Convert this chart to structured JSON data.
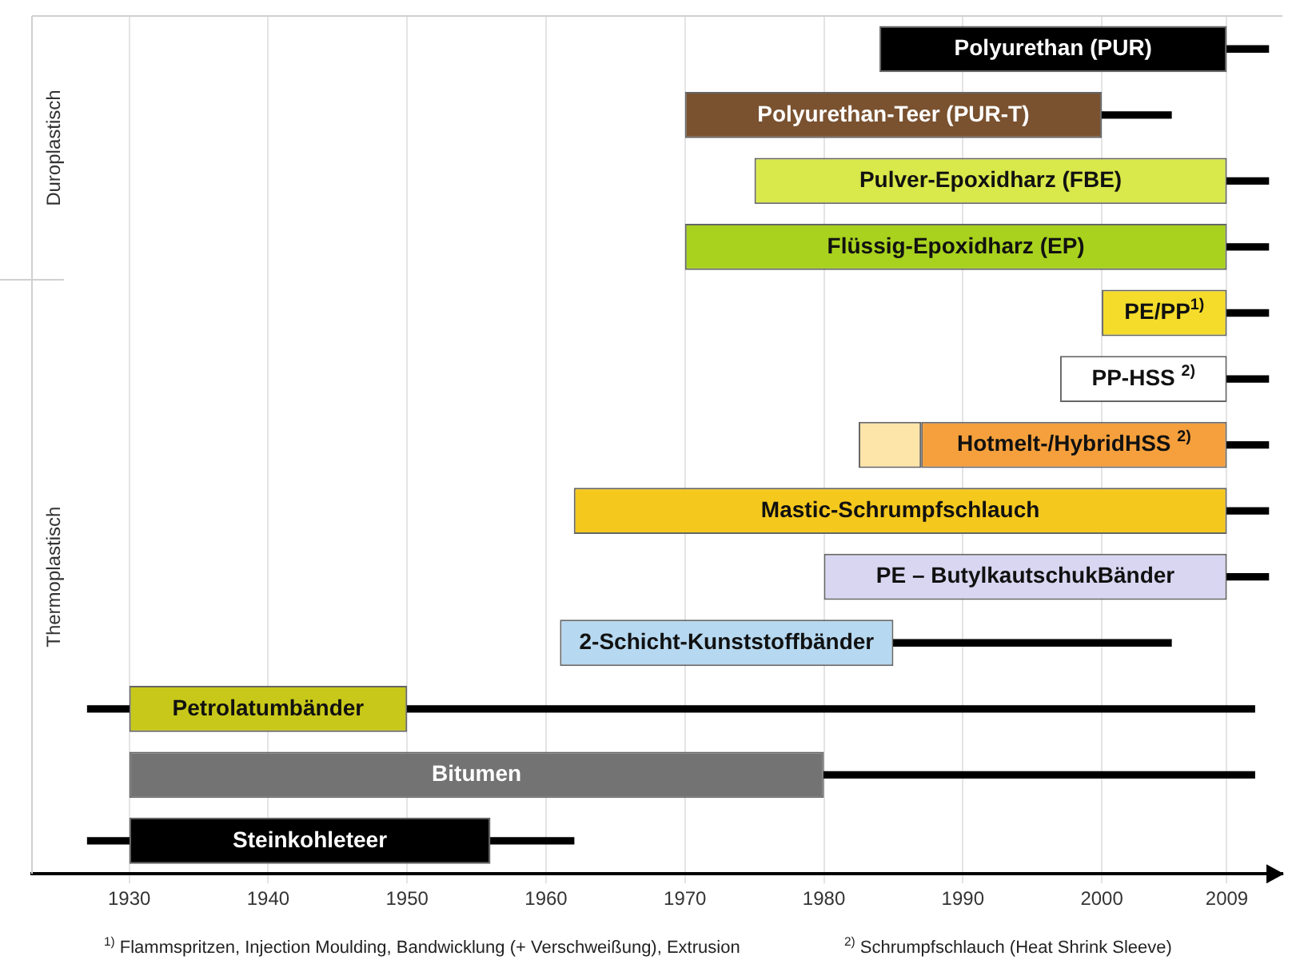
{
  "chart_data": {
    "type": "bar",
    "orientation": "horizontal",
    "categories": [
      "Polyurethan (PUR)",
      "Polyurethan-Teer (PUR-T)",
      "Pulver-Epoxidharz (FBE)",
      "Flüssig-Epoxidharz (EP)",
      "PE/PP$^{1)}$",
      "PP-HSS $^{2)}$",
      "Hotmelt-/HybridHSS $^{2)}$",
      "Mastic-Schrumpfschlauch",
      "PE – ButylkautschukBänder",
      "2-Schicht-Kunststoffbänder",
      "Petrolatumbänder",
      "Bitumen",
      "Steinkohleteer"
    ],
    "series": [
      {
        "type": "bar",
        "colors": [
          "#000000",
          "#7a5230",
          "#d9e84a",
          "#a8d21e",
          "#f5dc2a",
          "#ffffff",
          "#f5a03c",
          "#f5c81e",
          "#d9d6f2",
          "#b6d8f0",
          "#c8c81a",
          "#737373",
          "#000000"
        ],
        "base": [
          1984,
          1970,
          1975,
          1970,
          2000,
          1997,
          1987,
          1962,
          1980,
          1961,
          1930,
          1930,
          1930
        ],
        "values": [
          25,
          30,
          34,
          39,
          9,
          12,
          22,
          47,
          29,
          24,
          20,
          50,
          26
        ]
      },
      {
        "type": "bar",
        "color": "#fde4a8",
        "base": [
          null,
          null,
          null,
          null,
          null,
          null,
          1982.5,
          null,
          null,
          null,
          null,
          null,
          null
        ],
        "values": [
          null,
          null,
          null,
          null,
          null,
          null,
          4.5,
          null,
          null,
          null,
          null,
          null,
          null
        ]
      },
      {
        "type": "bar",
        "color": "#000000",
        "line_style": "dotted",
        "base": [
          2009,
          2000,
          2009,
          2009,
          2009,
          2009,
          2009,
          2009,
          2009,
          1985,
          1950,
          1980,
          1956
        ],
        "values": [
          3,
          5,
          3,
          3,
          3,
          3,
          3,
          3,
          3,
          20,
          61,
          31,
          6
        ]
      },
      {
        "type": "bar",
        "color": "#000000",
        "line_style": "dotted",
        "base": [
          null,
          null,
          null,
          null,
          null,
          null,
          null,
          null,
          null,
          null,
          1927,
          null,
          1927
        ],
        "values": [
          null,
          null,
          null,
          null,
          null,
          null,
          null,
          null,
          null,
          null,
          3,
          null,
          3
        ]
      }
    ],
    "xlim": [
      1923,
      2013
    ],
    "xticks": [
      1930,
      1940,
      1950,
      1960,
      1970,
      1980,
      1990,
      2000,
      2009
    ],
    "grid": "x",
    "legend": false,
    "tick_labels": "x",
    "annotations": [
      "Duroplastisch",
      "Thermoplastisch",
      "$^{1)}$ Flammspritzen, Injection Moulding, Bandwicklung (+ Verschweißung), Extrusion",
      "$^{2)}$ Schrumpfschlauch (Heat Shrink Sleeve)"
    ]
  }
}
